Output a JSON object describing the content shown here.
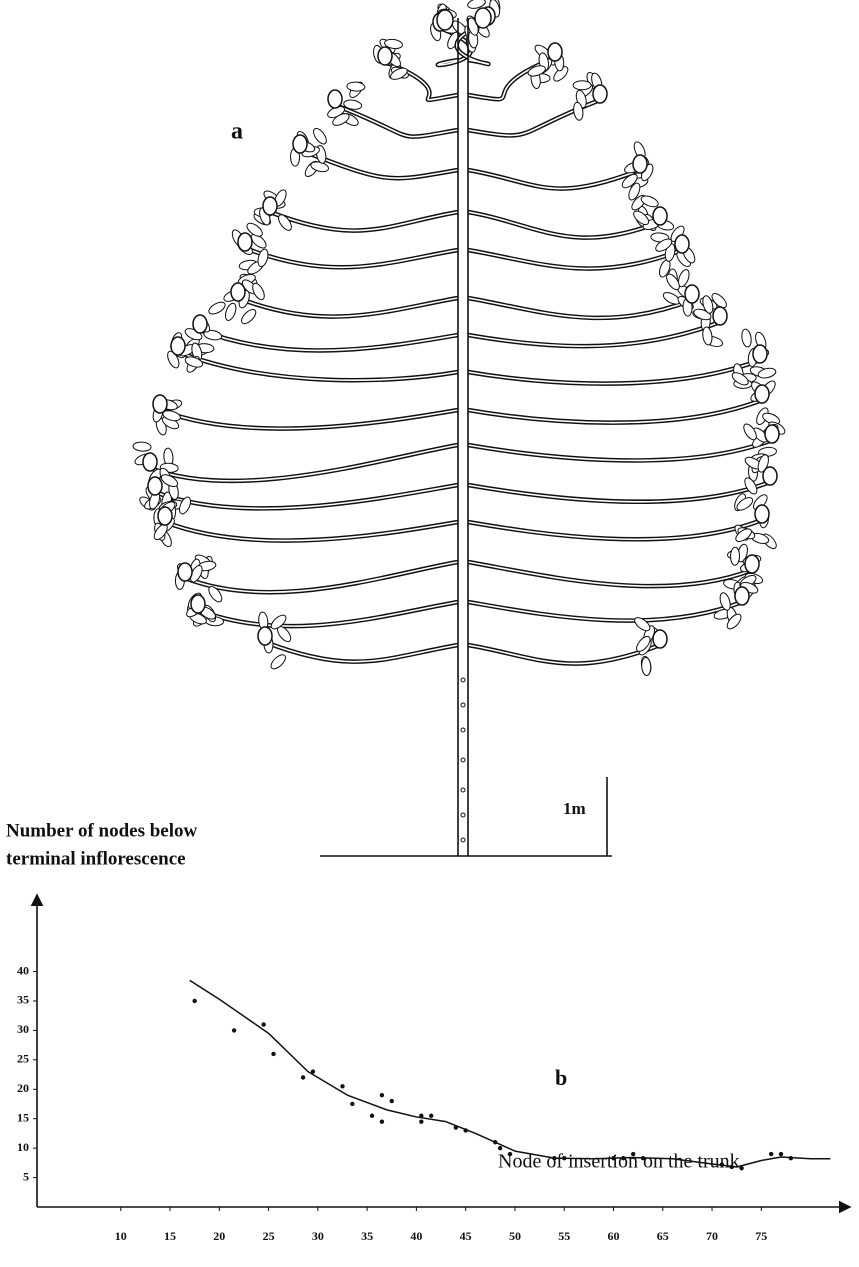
{
  "figure": {
    "panel_label": "a",
    "scale_bar_label": "1m"
  },
  "chart_data": {
    "type": "scatter",
    "panel_label": "b",
    "ylabel": [
      "Number of nodes below",
      "terminal inflorescence"
    ],
    "xlabel": "Node of insertion on the trunk",
    "xlim": [
      1.5,
      84
    ],
    "ylim": [
      0,
      53
    ],
    "xticks": [
      10,
      15,
      20,
      25,
      30,
      35,
      40,
      45,
      50,
      55,
      60,
      65,
      70,
      75
    ],
    "yticks": [
      5,
      10,
      15,
      20,
      25,
      30,
      35,
      40
    ],
    "series": [
      {
        "type": "scatter",
        "color": "#111111",
        "x": [
          17.5,
          21.5,
          24.5,
          25.5,
          28.5,
          29.5,
          32.5,
          33.5,
          35.5,
          36.5,
          36.5,
          37.5,
          40.5,
          40.5,
          41.5,
          44,
          45,
          48,
          48.5,
          49.5,
          54,
          55,
          60,
          61,
          62,
          63,
          71,
          72,
          73,
          76,
          77,
          78
        ],
        "values": [
          35,
          30,
          31,
          26,
          22,
          23,
          20.5,
          17.5,
          15.5,
          14.5,
          19,
          18,
          14.5,
          15.5,
          15.5,
          13.5,
          13,
          11,
          10,
          9,
          8.3,
          8.3,
          8.3,
          8.3,
          9,
          8.3,
          7.2,
          6.8,
          6.6,
          9,
          9,
          8.3
        ]
      },
      {
        "type": "line",
        "color": "#111111",
        "x": [
          17,
          20,
          25,
          29,
          33,
          37,
          40,
          43,
          46,
          50,
          54,
          58,
          62,
          66,
          70,
          72.5,
          75,
          77,
          80,
          82
        ],
        "values": [
          38.5,
          35.3,
          29.5,
          23,
          19,
          16.5,
          15.3,
          14.5,
          12.5,
          9.5,
          8.3,
          8.2,
          8.4,
          8.2,
          7.3,
          6.8,
          7.9,
          8.5,
          8.2,
          8.2
        ]
      }
    ]
  }
}
